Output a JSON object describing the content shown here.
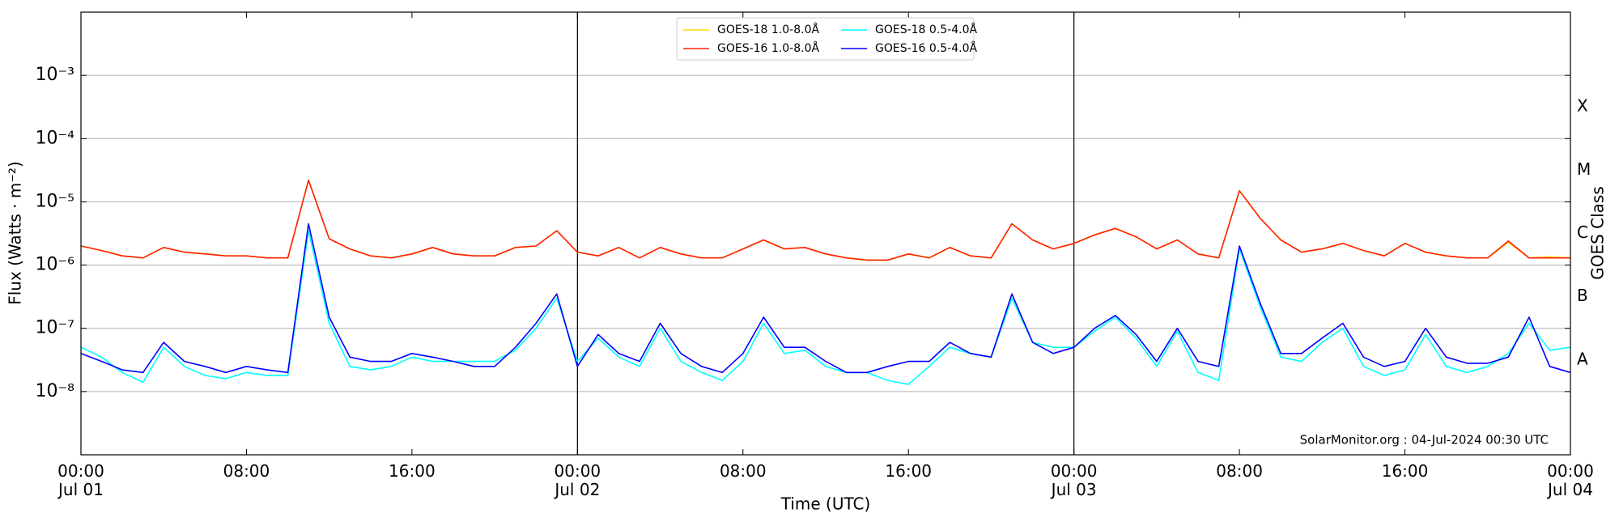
{
  "chart_data": {
    "type": "line",
    "log_y": true,
    "grid": true,
    "legend": "upper center",
    "xlabel": "Time (UTC)",
    "ylabel": "Flux (Watts · m⁻²)",
    "y2label": "GOES Class",
    "annotation": "SolarMonitor.org : 04-Jul-2024 00:30 UTC",
    "xlim": [
      0,
      72
    ],
    "xticks": [
      {
        "value": 0,
        "label": "00:00\nJul 01"
      },
      {
        "value": 8,
        "label": "08:00"
      },
      {
        "value": 16,
        "label": "16:00"
      },
      {
        "value": 24,
        "label": "00:00\nJul 02"
      },
      {
        "value": 32,
        "label": "08:00"
      },
      {
        "value": 40,
        "label": "16:00"
      },
      {
        "value": 48,
        "label": "00:00\nJul 03"
      },
      {
        "value": 56,
        "label": "08:00"
      },
      {
        "value": 64,
        "label": "16:00"
      },
      {
        "value": 72,
        "label": "00:00\nJul 04"
      }
    ],
    "ylim": [
      1e-09,
      0.01
    ],
    "yticks": [
      {
        "value": 1e-08,
        "label": "10⁻⁸"
      },
      {
        "value": 1e-07,
        "label": "10⁻⁷"
      },
      {
        "value": 1e-06,
        "label": "10⁻⁶"
      },
      {
        "value": 1e-05,
        "label": "10⁻⁵"
      },
      {
        "value": 0.0001,
        "label": "10⁻⁴"
      },
      {
        "value": 0.001,
        "label": "10⁻³"
      }
    ],
    "y2lim": [
      1e-09,
      0.01
    ],
    "y2ticks": [
      {
        "value": 3.16e-08,
        "label": "A"
      },
      {
        "value": 3.16e-07,
        "label": "B"
      },
      {
        "value": 3.16e-06,
        "label": "C"
      },
      {
        "value": 3.16e-05,
        "label": "M"
      },
      {
        "value": 0.000316,
        "label": "X"
      }
    ],
    "x": [
      0,
      1,
      2,
      3,
      4,
      5,
      6,
      7,
      8,
      9,
      10,
      11,
      12,
      13,
      14,
      15,
      16,
      17,
      18,
      19,
      20,
      21,
      22,
      23,
      24,
      25,
      26,
      27,
      28,
      29,
      30,
      31,
      32,
      33,
      34,
      35,
      36,
      37,
      38,
      39,
      40,
      41,
      42,
      43,
      44,
      45,
      46,
      47,
      48,
      49,
      50,
      51,
      52,
      53,
      54,
      55,
      56,
      57,
      58,
      59,
      60,
      61,
      62,
      63,
      64,
      65,
      66,
      67,
      68,
      69,
      70,
      71,
      72
    ],
    "series": [
      {
        "name": "GOES-18 1.0-8.0Å",
        "color": "#ffd700",
        "values": [
          2e-06,
          1.7e-06,
          1.4e-06,
          1.3e-06,
          1.9e-06,
          1.6e-06,
          1.5e-06,
          1.4e-06,
          1.4e-06,
          1.3e-06,
          1.3e-06,
          2.2e-05,
          2.6e-06,
          1.8e-06,
          1.4e-06,
          1.3e-06,
          1.5e-06,
          1.9e-06,
          1.5e-06,
          1.4e-06,
          1.4e-06,
          1.9e-06,
          2e-06,
          3.5e-06,
          1.6e-06,
          1.4e-06,
          1.9e-06,
          1.3e-06,
          1.9e-06,
          1.5e-06,
          1.3e-06,
          1.3e-06,
          1.8e-06,
          2.5e-06,
          1.8e-06,
          1.9e-06,
          1.5e-06,
          1.3e-06,
          1.2e-06,
          1.2e-06,
          1.5e-06,
          1.3e-06,
          1.9e-06,
          1.4e-06,
          1.3e-06,
          4.5e-06,
          2.5e-06,
          1.8e-06,
          2.2e-06,
          3e-06,
          3.8e-06,
          2.8e-06,
          1.8e-06,
          2.5e-06,
          1.5e-06,
          1.3e-06,
          1.5e-05,
          5.5e-06,
          2.5e-06,
          1.6e-06,
          1.8e-06,
          2.2e-06,
          1.7e-06,
          1.4e-06,
          2.2e-06,
          1.6e-06,
          1.4e-06,
          1.3e-06,
          1.3e-06,
          2.3e-06,
          1.3e-06,
          1.35e-06,
          1.3e-06
        ]
      },
      {
        "name": "GOES-16 1.0-8.0Å",
        "color": "#ff2000",
        "values": [
          2e-06,
          1.7e-06,
          1.4e-06,
          1.3e-06,
          1.9e-06,
          1.6e-06,
          1.5e-06,
          1.4e-06,
          1.4e-06,
          1.3e-06,
          1.3e-06,
          2.2e-05,
          2.6e-06,
          1.8e-06,
          1.4e-06,
          1.3e-06,
          1.5e-06,
          1.9e-06,
          1.5e-06,
          1.4e-06,
          1.4e-06,
          1.9e-06,
          2e-06,
          3.5e-06,
          1.6e-06,
          1.4e-06,
          1.9e-06,
          1.3e-06,
          1.9e-06,
          1.5e-06,
          1.3e-06,
          1.3e-06,
          1.8e-06,
          2.5e-06,
          1.8e-06,
          1.9e-06,
          1.5e-06,
          1.3e-06,
          1.2e-06,
          1.2e-06,
          1.5e-06,
          1.3e-06,
          1.9e-06,
          1.4e-06,
          1.3e-06,
          4.5e-06,
          2.5e-06,
          1.8e-06,
          2.2e-06,
          3e-06,
          3.8e-06,
          2.8e-06,
          1.8e-06,
          2.5e-06,
          1.5e-06,
          1.3e-06,
          1.5e-05,
          5.5e-06,
          2.5e-06,
          1.6e-06,
          1.8e-06,
          2.2e-06,
          1.7e-06,
          1.4e-06,
          2.2e-06,
          1.6e-06,
          1.4e-06,
          1.3e-06,
          1.3e-06,
          2.4e-06,
          1.3e-06,
          1.3e-06,
          1.3e-06
        ]
      },
      {
        "name": "GOES-18 0.5-4.0Å",
        "color": "#00ffff",
        "values": [
          5e-08,
          3.5e-08,
          2e-08,
          1.4e-08,
          5e-08,
          2.5e-08,
          1.8e-08,
          1.6e-08,
          2e-08,
          1.8e-08,
          1.8e-08,
          3.5e-06,
          1.2e-07,
          2.5e-08,
          2.2e-08,
          2.5e-08,
          3.5e-08,
          3e-08,
          3e-08,
          3e-08,
          3e-08,
          4.5e-08,
          1e-07,
          3e-07,
          3e-08,
          7e-08,
          3.5e-08,
          2.5e-08,
          1e-07,
          3e-08,
          2e-08,
          1.5e-08,
          3e-08,
          1.2e-07,
          4e-08,
          4.5e-08,
          2.5e-08,
          2e-08,
          2e-08,
          1.5e-08,
          1.3e-08,
          2.5e-08,
          5e-08,
          4e-08,
          3.5e-08,
          3e-07,
          6e-08,
          5e-08,
          5e-08,
          9e-08,
          1.5e-07,
          7e-08,
          2.5e-08,
          9e-08,
          2e-08,
          1.5e-08,
          1.8e-06,
          2.2e-07,
          3.5e-08,
          3e-08,
          6e-08,
          1e-07,
          2.5e-08,
          1.8e-08,
          2.2e-08,
          8e-08,
          2.5e-08,
          2e-08,
          2.5e-08,
          4e-08,
          1.2e-07,
          4.5e-08,
          5e-08
        ]
      },
      {
        "name": "GOES-16 0.5-4.0Å",
        "color": "#0000ff",
        "values": [
          4e-08,
          3e-08,
          2.2e-08,
          2e-08,
          6e-08,
          3e-08,
          2.5e-08,
          2e-08,
          2.5e-08,
          2.2e-08,
          2e-08,
          4.5e-06,
          1.5e-07,
          3.5e-08,
          3e-08,
          3e-08,
          4e-08,
          3.5e-08,
          3e-08,
          2.5e-08,
          2.5e-08,
          5e-08,
          1.2e-07,
          3.5e-07,
          2.5e-08,
          8e-08,
          4e-08,
          3e-08,
          1.2e-07,
          4e-08,
          2.5e-08,
          2e-08,
          4e-08,
          1.5e-07,
          5e-08,
          5e-08,
          3e-08,
          2e-08,
          2e-08,
          2.5e-08,
          3e-08,
          3e-08,
          6e-08,
          4e-08,
          3.5e-08,
          3.5e-07,
          6e-08,
          4e-08,
          5e-08,
          1e-07,
          1.6e-07,
          8e-08,
          3e-08,
          1e-07,
          3e-08,
          2.5e-08,
          2e-06,
          2.5e-07,
          4e-08,
          4e-08,
          7e-08,
          1.2e-07,
          3.5e-08,
          2.5e-08,
          3e-08,
          1e-07,
          3.5e-08,
          2.8e-08,
          2.8e-08,
          3.5e-08,
          1.5e-07,
          2.5e-08,
          2e-08
        ]
      }
    ]
  }
}
